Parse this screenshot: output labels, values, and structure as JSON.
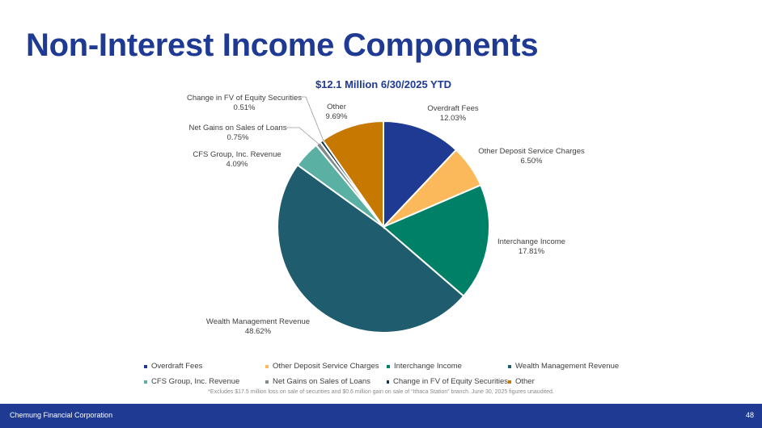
{
  "page": {
    "title": "Non-Interest Income Components",
    "footnote": "*Excludes $17.5 million loss on sale of securities and $0.6 million gain on sale of “Ithaca Station” branch.  June 30, 2025 figures unaudited.",
    "footer_company": "Chemung Financial Corporation",
    "page_number": "48"
  },
  "chart_data": {
    "type": "pie",
    "title": "$12.1 Million 6/30/2025 YTD",
    "slices": [
      {
        "name": "Overdraft Fees",
        "value": 12.03,
        "label": "12.03%",
        "color": "#1f3a93"
      },
      {
        "name": "Other Deposit Service Charges",
        "value": 6.5,
        "label": "6.50%",
        "color": "#fbb95b"
      },
      {
        "name": "Interchange Income",
        "value": 17.81,
        "label": "17.81%",
        "color": "#008066"
      },
      {
        "name": "Wealth Management Revenue",
        "value": 48.62,
        "label": "48.62%",
        "color": "#1f5c6e"
      },
      {
        "name": "CFS Group, Inc. Revenue",
        "value": 4.09,
        "label": "4.09%",
        "color": "#5bb0a4"
      },
      {
        "name": "Net Gains on Sales of Loans",
        "value": 0.75,
        "label": "0.75%",
        "color": "#7f8c8d"
      },
      {
        "name": "Change in FV of Equity Securities",
        "value": 0.51,
        "label": "0.51%",
        "color": "#17354a"
      },
      {
        "name": "Other",
        "value": 9.69,
        "label": "9.69%",
        "color": "#c77800"
      }
    ],
    "legend_position": "bottom"
  }
}
